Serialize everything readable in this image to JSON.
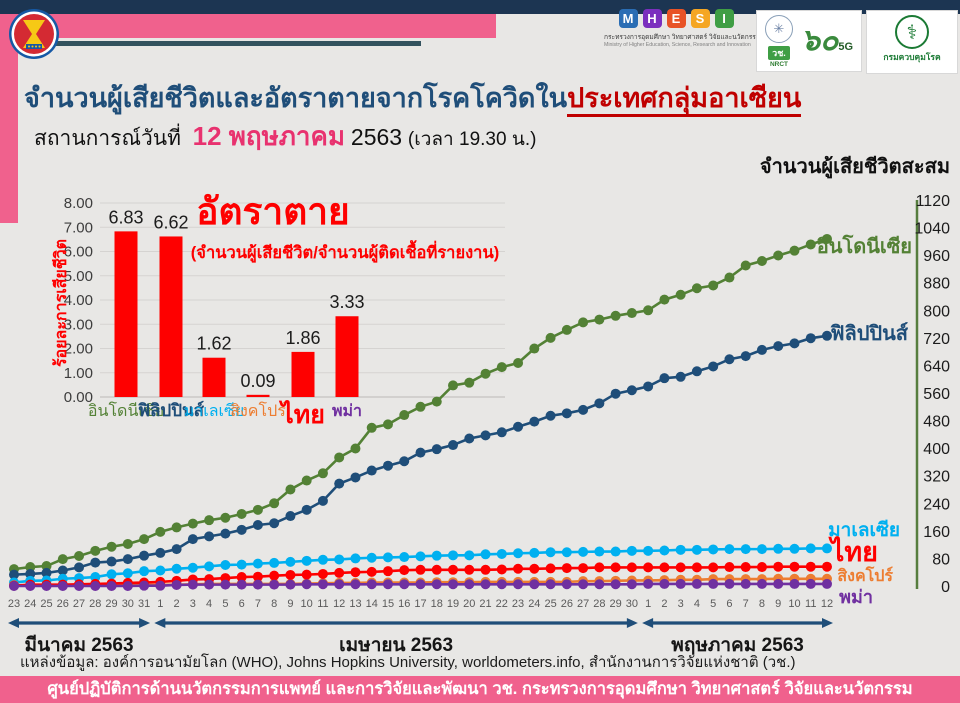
{
  "header": {
    "title_blue": "จำนวนผู้เสียชีวิตและอัตราตายจากโรคโควิดใน",
    "title_red": "ประเทศกลุ่มอาเซียน",
    "status_prefix": "สถานการณ์วันที่",
    "status_date": "12 พฤษภาคม",
    "status_year": "2563",
    "status_time": "(เวลา 19.30 น.)",
    "right_axis_title": "จำนวนผู้เสียชีวิตสะสม"
  },
  "logos": {
    "mhesi_letters": [
      {
        "ch": "M",
        "color": "#2a6db4"
      },
      {
        "ch": "H",
        "color": "#7b2fbe"
      },
      {
        "ch": "E",
        "color": "#e85326"
      },
      {
        "ch": "S",
        "color": "#f5a623"
      },
      {
        "ch": "I",
        "color": "#3f9e44"
      }
    ],
    "mhesi_name_thai": "กระทรวงการอุดมศึกษา วิทยาศาสตร์ วิจัยและนวัตกรรม",
    "mhesi_name_english": "Ministry of Higher Education, Science, Research and Innovation",
    "nrct_thai": "วช.",
    "nrct_english": "NRCT",
    "sixty": "๖๐",
    "five_g": "5G",
    "ddc_name": "กรมควบคุมโรค"
  },
  "chart_data": [
    {
      "type": "bar",
      "title": "อัตราตาย",
      "subtitle": "(จำนวนผู้เสียชีวิต/จำนวนผู้ติดเชื้อที่รายงาน)",
      "ylabel": "ร้อยละการเสียชีวิต",
      "categories": [
        "อินโดนีเซีย",
        "ฟิลิปปินส์",
        "มาเลเซีย",
        "สิงคโปร์",
        "ไทย",
        "พม่า"
      ],
      "category_ids": [
        "indonesia",
        "philippines",
        "malaysia",
        "singapore",
        "thailand",
        "myanmar"
      ],
      "category_colors": [
        "#538135",
        "#1f4e79",
        "#00b0f0",
        "#ed7d31",
        "#fe0000",
        "#7030a0"
      ],
      "values": [
        6.83,
        6.62,
        1.62,
        0.09,
        1.86,
        3.33
      ],
      "bar_color": "#fe0000",
      "ylim": [
        0,
        8
      ],
      "ytick_step": 1,
      "grid": true
    },
    {
      "type": "line",
      "title": "จำนวนผู้เสียชีวิตสะสม",
      "ylim": [
        0,
        1120
      ],
      "ytick_step": 80,
      "x_labels": [
        "23",
        "24",
        "25",
        "26",
        "27",
        "28",
        "29",
        "30",
        "31",
        "1",
        "2",
        "3",
        "4",
        "5",
        "6",
        "7",
        "8",
        "9",
        "10",
        "11",
        "12",
        "13",
        "14",
        "15",
        "16",
        "17",
        "18",
        "19",
        "20",
        "21",
        "22",
        "23",
        "24",
        "25",
        "26",
        "27",
        "28",
        "29",
        "30",
        "1",
        "2",
        "3",
        "4",
        "5",
        "6",
        "7",
        "8",
        "9",
        "10",
        "11",
        "12"
      ],
      "month_groups": [
        {
          "id": "march",
          "label": "มีนาคม 2563",
          "from": 0,
          "to": 8
        },
        {
          "id": "april",
          "label": "เมษายน 2563",
          "from": 9,
          "to": 38
        },
        {
          "id": "may",
          "label": "พฤษภาคม 2563",
          "from": 39,
          "to": 50
        }
      ],
      "series": [
        {
          "id": "indonesia",
          "name": "อินโดนีเซีย",
          "color": "#538135",
          "values": [
            49,
            55,
            58,
            78,
            87,
            102,
            114,
            122,
            136,
            157,
            170,
            181,
            191,
            198,
            209,
            221,
            240,
            280,
            306,
            327,
            373,
            399,
            459,
            469,
            496,
            520,
            535,
            582,
            590,
            616,
            635,
            647,
            689,
            720,
            743,
            765,
            773,
            784,
            792,
            800,
            831,
            845,
            864,
            872,
            895,
            930,
            943,
            959,
            973,
            991,
            1007
          ]
        },
        {
          "id": "philippines",
          "name": "ฟิลิปปินส์",
          "color": "#1f4e79",
          "values": [
            33,
            35,
            38,
            45,
            54,
            68,
            71,
            78,
            88,
            96,
            107,
            136,
            144,
            152,
            163,
            177,
            182,
            203,
            221,
            247,
            297,
            315,
            335,
            349,
            362,
            387,
            397,
            409,
            428,
            437,
            446,
            462,
            477,
            494,
            501,
            511,
            530,
            558,
            568,
            579,
            603,
            607,
            623,
            637,
            658,
            667,
            685,
            696,
            704,
            719,
            726
          ]
        },
        {
          "id": "malaysia",
          "name": "มาเลเซีย",
          "color": "#00b0f0",
          "values": [
            10,
            15,
            16,
            21,
            23,
            26,
            34,
            37,
            43,
            45,
            50,
            53,
            57,
            61,
            62,
            65,
            67,
            70,
            73,
            76,
            77,
            80,
            82,
            83,
            84,
            86,
            88,
            89,
            89,
            92,
            93,
            95,
            96,
            98,
            98,
            99,
            100,
            100,
            102,
            102,
            103,
            105,
            105,
            106,
            107,
            107,
            107,
            108,
            108,
            109,
            109
          ]
        },
        {
          "id": "singapore",
          "name": "สิงคโปร์",
          "color": "#ed7d31",
          "values": [
            2,
            2,
            2,
            2,
            2,
            2,
            3,
            3,
            3,
            3,
            4,
            5,
            6,
            6,
            6,
            6,
            6,
            6,
            7,
            8,
            9,
            9,
            10,
            10,
            10,
            10,
            11,
            11,
            11,
            12,
            12,
            12,
            12,
            12,
            12,
            14,
            14,
            15,
            16,
            16,
            17,
            18,
            18,
            20,
            20,
            20,
            20,
            21,
            21,
            21,
            21
          ]
        },
        {
          "id": "thailand",
          "name": "ไทย",
          "color": "#fe0000",
          "values": [
            1,
            4,
            4,
            4,
            5,
            6,
            7,
            9,
            10,
            12,
            15,
            19,
            20,
            23,
            26,
            27,
            30,
            32,
            33,
            35,
            38,
            40,
            41,
            43,
            46,
            47,
            47,
            47,
            47,
            47,
            48,
            50,
            50,
            51,
            52,
            52,
            54,
            54,
            54,
            54,
            54,
            54,
            54,
            54,
            55,
            55,
            55,
            56,
            56,
            56,
            56
          ]
        },
        {
          "id": "myanmar",
          "name": "พม่า",
          "color": "#7030a0",
          "values": [
            0,
            0,
            0,
            0,
            0,
            0,
            0,
            0,
            1,
            1,
            3,
            4,
            4,
            4,
            4,
            4,
            4,
            4,
            5,
            5,
            5,
            5,
            5,
            5,
            5,
            5,
            5,
            5,
            5,
            5,
            5,
            5,
            5,
            5,
            5,
            5,
            5,
            5,
            5,
            6,
            6,
            6,
            6,
            6,
            6,
            6,
            6,
            6,
            6,
            6,
            6
          ]
        }
      ]
    }
  ],
  "source": "แหล่งข้อมูล: องค์การอนามัยโลก (WHO), Johns Hopkins University, worldometers.info, สำนักงานการวิจัยแห่งชาติ (วช.)",
  "footer": "ศูนย์ปฏิบัติการด้านนวัตกรรมการแพทย์ และการวิจัยและพัฒนา  วช.   กระทรวงการอุดมศึกษา วิทยาศาสตร์ วิจัยและนวัตกรรม"
}
